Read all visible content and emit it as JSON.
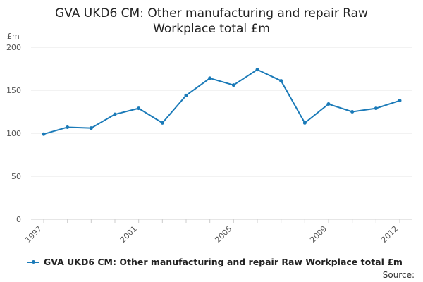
{
  "chart_data": {
    "type": "line",
    "title": "GVA UKD6 CM: Other manufacturing and repair Raw Workplace total £m",
    "ylabel": "£m",
    "xlabel": "",
    "x": [
      1997,
      1998,
      1999,
      2000,
      2001,
      2002,
      2003,
      2004,
      2005,
      2006,
      2007,
      2008,
      2009,
      2010,
      2011,
      2012
    ],
    "series": [
      {
        "name": "GVA UKD6 CM: Other manufacturing and repair Raw Workplace total £m",
        "values": [
          99,
          107,
          106,
          122,
          129,
          112,
          144,
          164,
          156,
          174,
          161,
          112,
          134,
          125,
          129,
          138
        ]
      }
    ],
    "x_tick_labels": [
      "1997",
      "2001",
      "2005",
      "2009",
      "2012"
    ],
    "y_ticks": [
      0,
      50,
      100,
      150,
      200
    ],
    "ylim": [
      0,
      200
    ],
    "grid": "horizontal",
    "legend_position": "bottom"
  },
  "colors": {
    "series": "#1a7ab8",
    "grid": "#e6e6e6",
    "axis": "#cccccc"
  },
  "footer": {
    "source": "Source:"
  }
}
